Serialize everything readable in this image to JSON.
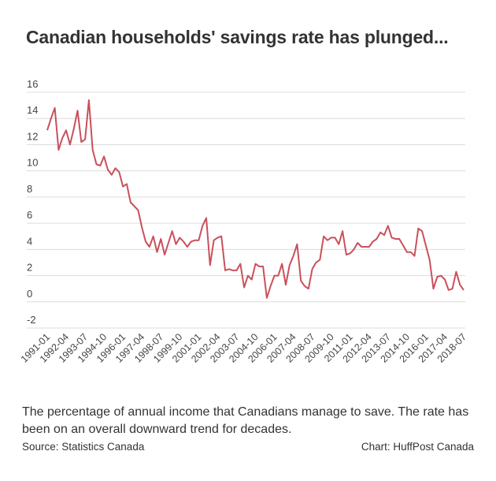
{
  "chart_data": {
    "type": "line",
    "title": "Canadian households' savings rate has plunged...",
    "description": "The percentage of annual income that Canadians manage to save. The rate has been on an overall downward trend for decades.",
    "source": "Source: Statistics Canada",
    "credit": "Chart: HuffPost Canada",
    "xlabel": "",
    "ylabel": "",
    "ylim": [
      -2,
      16
    ],
    "yticks": [
      -2,
      0,
      2,
      4,
      6,
      8,
      10,
      12,
      14,
      16
    ],
    "grid": true,
    "line_color": "#c9505b",
    "xticks": [
      "1991-01",
      "1992-04",
      "1993-07",
      "1994-10",
      "1996-01",
      "1997-04",
      "1998-07",
      "1999-10",
      "2001-01",
      "2002-04",
      "2003-07",
      "2004-10",
      "2006-01",
      "2007-04",
      "2008-07",
      "2009-10",
      "2011-01",
      "2012-04",
      "2013-07",
      "2014-10",
      "2016-01",
      "2017-04",
      "2018-07"
    ],
    "x": [
      "1991-01",
      "1991-04",
      "1991-07",
      "1991-10",
      "1992-01",
      "1992-04",
      "1992-07",
      "1992-10",
      "1993-01",
      "1993-04",
      "1993-07",
      "1993-10",
      "1994-01",
      "1994-04",
      "1994-07",
      "1994-10",
      "1995-01",
      "1995-04",
      "1995-07",
      "1995-10",
      "1996-01",
      "1996-04",
      "1996-07",
      "1996-10",
      "1997-01",
      "1997-04",
      "1997-07",
      "1997-10",
      "1998-01",
      "1998-04",
      "1998-07",
      "1998-10",
      "1999-01",
      "1999-04",
      "1999-07",
      "1999-10",
      "2000-01",
      "2000-04",
      "2000-07",
      "2000-10",
      "2001-01",
      "2001-04",
      "2001-07",
      "2001-10",
      "2002-01",
      "2002-04",
      "2002-07",
      "2002-10",
      "2003-01",
      "2003-04",
      "2003-07",
      "2003-10",
      "2004-01",
      "2004-04",
      "2004-07",
      "2004-10",
      "2005-01",
      "2005-04",
      "2005-07",
      "2005-10",
      "2006-01",
      "2006-04",
      "2006-07",
      "2006-10",
      "2007-01",
      "2007-04",
      "2007-07",
      "2007-10",
      "2008-01",
      "2008-04",
      "2008-07",
      "2008-10",
      "2009-01",
      "2009-04",
      "2009-07",
      "2009-10",
      "2010-01",
      "2010-04",
      "2010-07",
      "2010-10",
      "2011-01",
      "2011-04",
      "2011-07",
      "2011-10",
      "2012-01",
      "2012-04",
      "2012-07",
      "2012-10",
      "2013-01",
      "2013-04",
      "2013-07",
      "2013-10",
      "2014-01",
      "2014-04",
      "2014-07",
      "2014-10",
      "2015-01",
      "2015-04",
      "2015-07",
      "2015-10",
      "2016-01",
      "2016-04",
      "2016-07",
      "2016-10",
      "2017-01",
      "2017-04",
      "2017-07",
      "2017-10",
      "2018-01",
      "2018-04",
      "2018-07"
    ],
    "series": [
      {
        "values": [
          13.1,
          14.0,
          14.8,
          11.6,
          12.5,
          13.1,
          12.0,
          13.2,
          14.6,
          12.2,
          12.4,
          15.4,
          11.6,
          10.5,
          10.4,
          11.1,
          10.1,
          9.7,
          10.2,
          9.9,
          8.8,
          9.0,
          7.6,
          7.3,
          7.0,
          5.7,
          4.6,
          4.2,
          5.0,
          3.8,
          4.8,
          3.6,
          4.5,
          5.4,
          4.4,
          4.9,
          4.6,
          4.2,
          4.6,
          4.7,
          4.7,
          5.8,
          6.4,
          2.8,
          4.7,
          4.9,
          5.0,
          2.4,
          2.5,
          2.4,
          2.4,
          2.9,
          1.1,
          2.0,
          1.7,
          2.9,
          2.7,
          2.7,
          0.3,
          1.2,
          2.0,
          2.0,
          2.9,
          1.3,
          2.8,
          3.5,
          4.4,
          1.6,
          1.2,
          1.0,
          2.5,
          3.0,
          3.2,
          5.0,
          4.7,
          4.9,
          4.9,
          4.4,
          5.4,
          3.6,
          3.7,
          4.0,
          4.5,
          4.2,
          4.2,
          4.2,
          4.6,
          4.8,
          5.3,
          5.1,
          5.8,
          4.9,
          4.8,
          4.8,
          4.3,
          3.8,
          3.8,
          3.5,
          5.6,
          5.4,
          4.3,
          3.2,
          1.0,
          1.9,
          2.0,
          1.7,
          0.9,
          1.0,
          2.3,
          1.3,
          0.9
        ]
      }
    ]
  }
}
